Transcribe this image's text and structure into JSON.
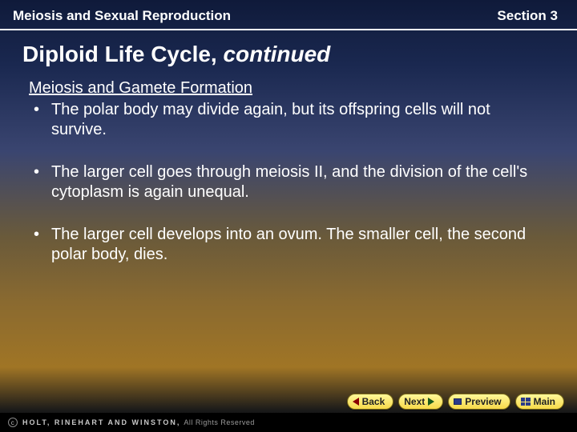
{
  "header": {
    "left": "Meiosis and Sexual Reproduction",
    "right": "Section 3"
  },
  "title": {
    "main": "Diploid Life Cycle, ",
    "cont": "continued"
  },
  "subheading": "Meiosis and Gamete Formation",
  "bullets": [
    "The polar body may divide again, but its offspring cells will not survive.",
    "The larger cell goes through meiosis II, and the division of the cell's cytoplasm is again unequal.",
    "The larger cell develops into an ovum. The smaller cell, the second polar body, dies."
  ],
  "nav": {
    "back": "Back",
    "next": "Next",
    "preview": "Preview",
    "main": "Main"
  },
  "footer": {
    "publisher": "HOLT, RINEHART AND WINSTON,",
    "rights": " All Rights Reserved"
  },
  "colors": {
    "text": "#ffffff",
    "btn_grad_top": "#fff89a",
    "btn_grad_bottom": "#f7d94a",
    "back_arrow": "#8a0000",
    "next_arrow": "#1a5a1a"
  }
}
